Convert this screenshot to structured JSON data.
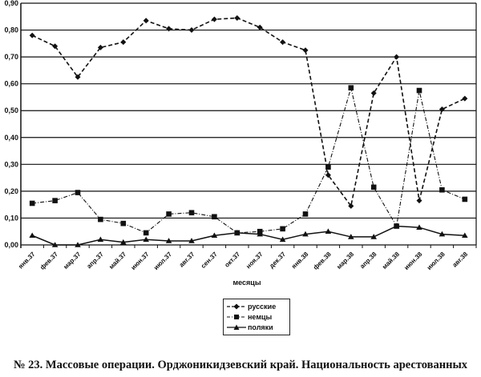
{
  "caption": "№ 23. Массовые операции. Орджоникидзевский край. Национальность арестованных",
  "legend": {
    "items": [
      {
        "label": "русские",
        "marker": "diamond-marker",
        "line": "dashed"
      },
      {
        "label": "немцы",
        "marker": "square-marker",
        "line": "dash-dot"
      },
      {
        "label": "поляки",
        "marker": "triangle-marker",
        "line": "solid"
      }
    ]
  },
  "chart_data": {
    "type": "line",
    "title": "",
    "xlabel": "месяцы",
    "ylabel": "",
    "ylim": [
      0,
      0.9
    ],
    "yticks": [
      "0,00",
      "0,10",
      "0,20",
      "0,30",
      "0,40",
      "0,50",
      "0,60",
      "0,70",
      "0,80",
      "0,90"
    ],
    "grid": true,
    "legend_position": "bottom-center",
    "categories": [
      "янв.37",
      "фев.37",
      "мар.37",
      "апр.37",
      "май.37",
      "июн.37",
      "июл.37",
      "авг.37",
      "сен.37",
      "окт.37",
      "ноя.37",
      "дек.37",
      "янв.38",
      "фев.38",
      "мар.38",
      "апр.38",
      "май.38",
      "июн.38",
      "июл.38",
      "авг.38"
    ],
    "series": [
      {
        "name": "русские",
        "values": [
          0.78,
          0.74,
          0.625,
          0.735,
          0.755,
          0.835,
          0.805,
          0.8,
          0.84,
          0.845,
          0.81,
          0.755,
          0.725,
          0.26,
          0.145,
          0.565,
          0.7,
          0.165,
          0.505,
          0.545
        ]
      },
      {
        "name": "немцы",
        "values": [
          0.155,
          0.165,
          0.195,
          0.095,
          0.08,
          0.045,
          0.115,
          0.12,
          0.105,
          0.045,
          0.05,
          0.06,
          0.115,
          0.29,
          0.585,
          0.215,
          0.07,
          0.575,
          0.205,
          0.17
        ]
      },
      {
        "name": "поляки",
        "values": [
          0.035,
          0.0,
          0.0,
          0.02,
          0.01,
          0.02,
          0.015,
          0.015,
          0.035,
          0.045,
          0.04,
          0.02,
          0.04,
          0.05,
          0.03,
          0.03,
          0.07,
          0.065,
          0.04,
          0.035
        ]
      }
    ]
  }
}
